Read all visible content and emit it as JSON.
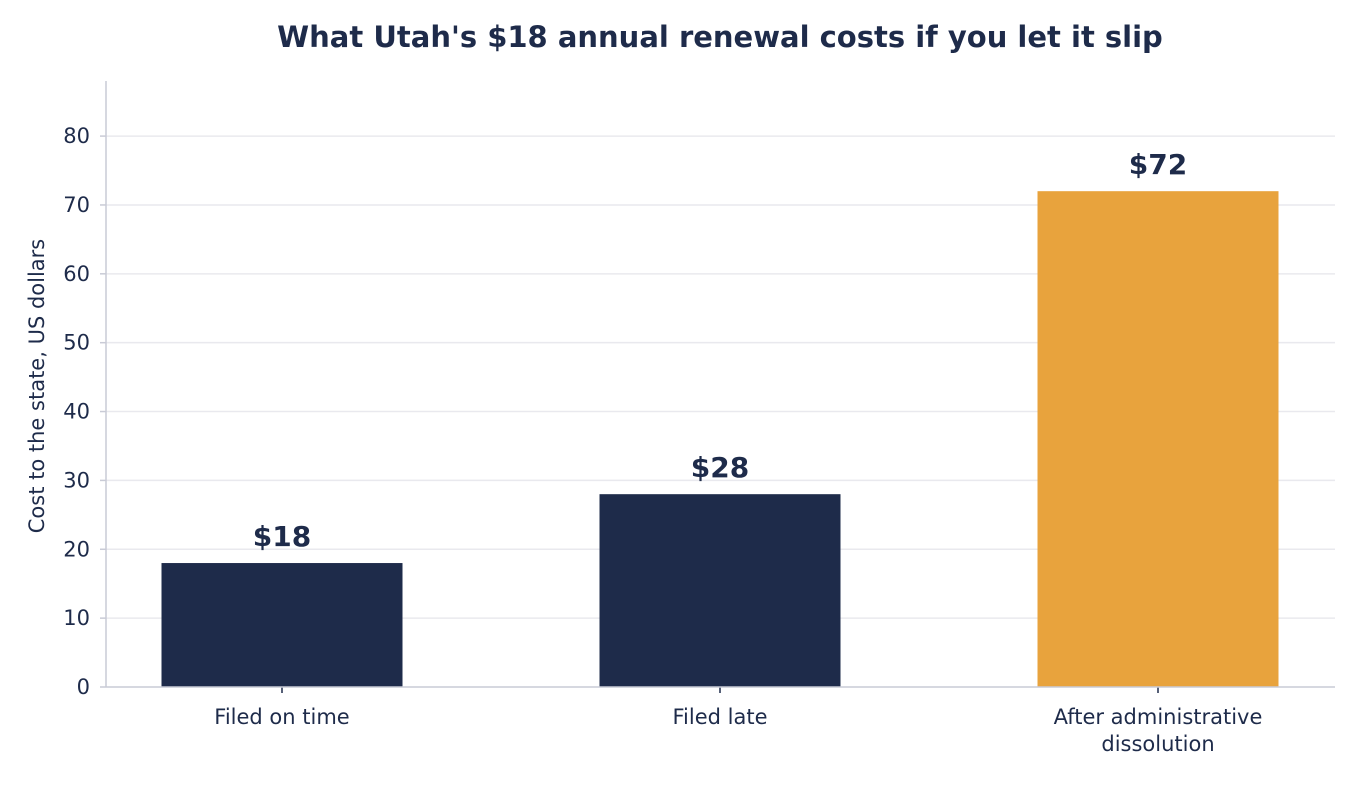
{
  "chart_data": {
    "type": "bar",
    "title": "What Utah's $18 annual renewal costs if you let it slip",
    "xlabel": "",
    "ylabel": "Cost to the state, US dollars",
    "categories": [
      [
        "Filed on time"
      ],
      [
        "Filed late"
      ],
      [
        "After administrative",
        "dissolution"
      ]
    ],
    "values": [
      18,
      28,
      72
    ],
    "value_labels": [
      "$18",
      "$28",
      "$72"
    ],
    "bar_colors": [
      "#1e2b4a",
      "#1e2b4a",
      "#e8a33d"
    ],
    "ylim": [
      0,
      88
    ],
    "yticks": [
      0,
      10,
      20,
      30,
      40,
      50,
      60,
      70,
      80
    ],
    "grid": "horizontal",
    "colors": {
      "text": "#1e2b4a",
      "grid": "#e9e9ee",
      "axis": "#c9cbd6"
    }
  }
}
